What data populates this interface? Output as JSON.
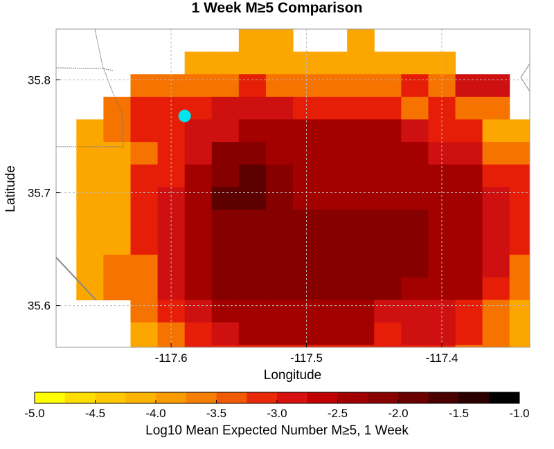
{
  "title": "1 Week M≥5 Comparison",
  "map": {
    "xlabel": "Longitude",
    "ylabel": "Latitude",
    "xlim": [
      -117.685,
      -117.335
    ],
    "ylim": [
      35.563,
      35.845
    ],
    "x_ticks": [
      -117.6,
      -117.5,
      -117.4
    ],
    "x_tick_labels": [
      "-117.6",
      "-117.5",
      "-117.4"
    ],
    "y_ticks": [
      35.6,
      35.7,
      35.8
    ],
    "y_tick_labels": [
      "35.6",
      "35.7",
      "35.8"
    ],
    "grid": true,
    "grid_origin": {
      "lon": -117.67,
      "lat": 35.845
    },
    "cell_size": {
      "dlon": 0.02,
      "dlat": 0.02
    },
    "rows": [
      "......AA..A..........",
      "....AAAAAAAAAA.......",
      "..BBBBCBBBBBCBDD.....",
      ".BCCCDDDCCCCBCBB.....",
      "ABCCDDEEEEEEDCCAA....",
      "AABCDFFEEEEEEDDBBA...",
      "AACCEFGFEEEEEEECCBA..",
      "AACDEGGFEEEEEEEDCAAB.",
      "AACDEFFFFFFFFEEDCBAB.",
      "AACDEFFFFFFFFEEDCBAA.",
      "ABBDEFFFFFFFFEEDBAAAA",
      "ABBDEFFFFFFFEEECBAAAA",
      "..BCDEEEEEEDDDCBAAAAA",
      "..ABCDEEEEECDDCBAAA..",
      "..ABCCCCCCCCCCBBAA...",
      "...DCBBBBBBBBAAA.....",
      "....AAAAAAAAA........"
    ],
    "marker": {
      "lon": -117.59,
      "lat": 35.768,
      "color": "#00e5ee"
    },
    "colors": {
      "A": "#fca600",
      "B": "#f67300",
      "C": "#e61e08",
      "D": "#cf1010",
      "E": "#a30000",
      "F": "#860000",
      "G": "#5c0000"
    }
  },
  "colorbar": {
    "label": "Log10 Mean Expected Number M≥5, 1 Week",
    "min": -5.0,
    "max": -1.0,
    "tick_labels": [
      "-5.0",
      "-4.5",
      "-4.0",
      "-3.5",
      "-3.0",
      "-2.5",
      "-2.0",
      "-1.5",
      "-1.0"
    ],
    "tick_values": [
      -5.0,
      -4.5,
      -4.0,
      -3.5,
      -3.0,
      -2.5,
      -2.0,
      -1.5,
      -1.0
    ],
    "colors": [
      "#ffff00",
      "#ffdd00",
      "#ffc800",
      "#fcb400",
      "#fa9b00",
      "#f67e00",
      "#f05a00",
      "#e82a08",
      "#d81010",
      "#c00000",
      "#a00000",
      "#880000",
      "#6a0000",
      "#4a0000",
      "#2a0000",
      "#000000"
    ]
  }
}
